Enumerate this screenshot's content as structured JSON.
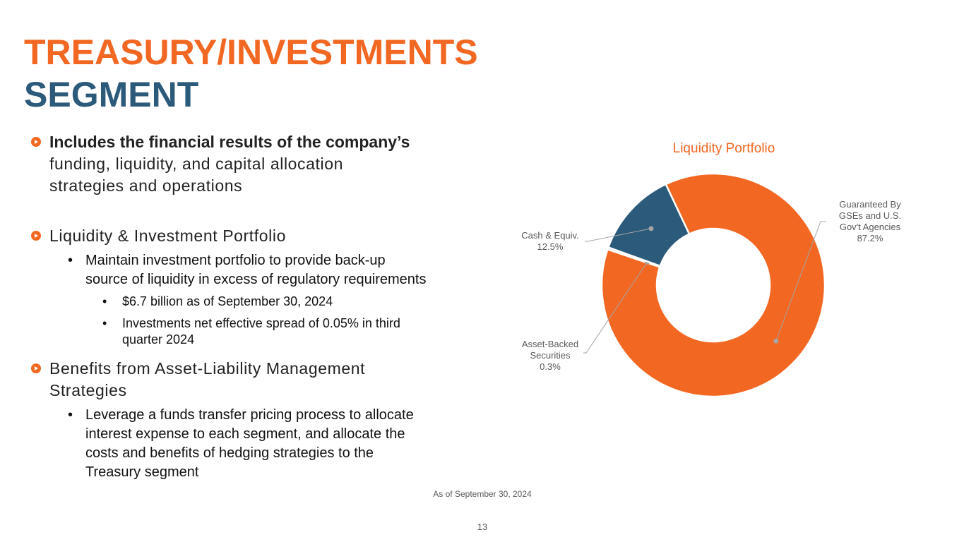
{
  "title": {
    "line1": "TREASURY/INVESTMENTS",
    "line2": "SEGMENT"
  },
  "bullets": {
    "b1_bold": "Includes the financial results of the company’s",
    "b1_rest_1": "funding, liquidity, and capital allocation",
    "b1_rest_2": "strategies and operations",
    "b2": "Liquidity & Investment Portfolio",
    "b2_sub1_l1": "Maintain investment portfolio to provide back-up",
    "b2_sub1_l2": "source of liquidity in excess of regulatory requirements",
    "b2_sub1_a": "$6.7 billion as of September 30, 2024",
    "b2_sub1_b_l1": "Investments net effective spread of 0.05% in third",
    "b2_sub1_b_l2": "quarter 2024",
    "b3_l1": "Benefits from Asset-Liability Management",
    "b3_l2": "Strategies",
    "b3_sub1_l1": "Leverage a funds transfer pricing process to allocate",
    "b3_sub1_l2": "interest expense to each segment, and allocate the",
    "b3_sub1_l3": "costs and benefits of hedging strategies to the",
    "b3_sub1_l4": "Treasury segment",
    "bullet_char": "•"
  },
  "chart_data": {
    "type": "pie",
    "title": "Liquidity Portfolio",
    "donut": true,
    "slices": [
      {
        "label_lines": [
          "Guaranteed By",
          "GSEs and U.S.",
          "Gov't Agencies",
          "87.2%"
        ],
        "value": 87.2,
        "color": "#f26722"
      },
      {
        "label_lines": [
          "Asset-Backed",
          "Securities",
          "0.3%"
        ],
        "value": 0.3,
        "color": "#a5a5a5"
      },
      {
        "label_lines": [
          "Cash & Equiv.",
          "12.5%"
        ],
        "value": 12.5,
        "color": "#2c5a7a"
      }
    ],
    "footnote": "As of September 30, 2024"
  },
  "page_number": "13"
}
